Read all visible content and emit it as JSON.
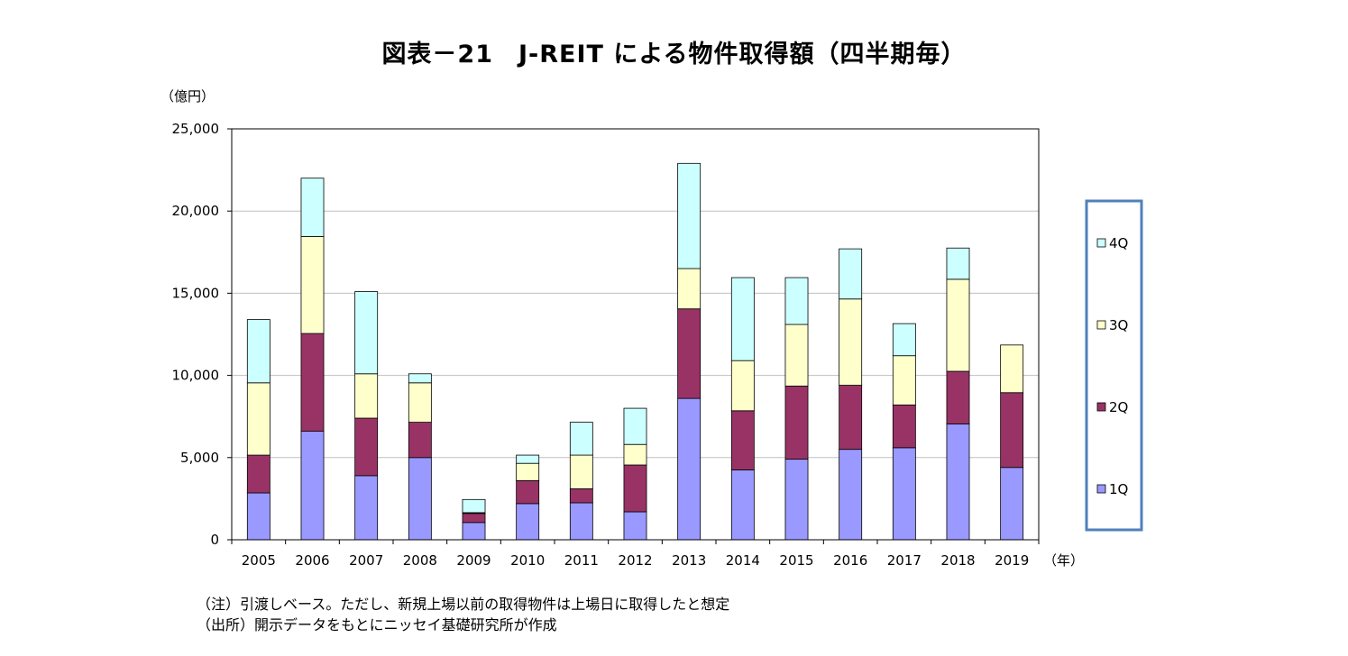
{
  "chart_data": {
    "type": "bar",
    "stacked": true,
    "title": "図表－21　J-REIT による物件取得額（四半期毎）",
    "ylabel": "（億円）",
    "xlabel": "（年）",
    "ylim": [
      0,
      25000
    ],
    "yticks": [
      "0",
      "5,000",
      "10,000",
      "15,000",
      "20,000",
      "25,000"
    ],
    "ytick_values": [
      0,
      5000,
      10000,
      15000,
      20000,
      25000
    ],
    "grid": true,
    "legend_position": "right",
    "categories": [
      "2005",
      "2006",
      "2007",
      "2008",
      "2009",
      "2010",
      "2011",
      "2012",
      "2013",
      "2014",
      "2015",
      "2016",
      "2017",
      "2018",
      "2019"
    ],
    "series": [
      {
        "name": "1Q",
        "color": "#9999ff",
        "values": [
          2850,
          6600,
          3900,
          5000,
          1050,
          2200,
          2250,
          1700,
          8600,
          4250,
          4900,
          5500,
          5600,
          7050,
          4400
        ]
      },
      {
        "name": "2Q",
        "color": "#993366",
        "values": [
          2300,
          5950,
          3500,
          2150,
          550,
          1400,
          850,
          2850,
          5450,
          3600,
          4450,
          3900,
          2600,
          3200,
          4550
        ]
      },
      {
        "name": "3Q",
        "color": "#ffffcc",
        "values": [
          4400,
          5900,
          2700,
          2400,
          50,
          1050,
          2050,
          1250,
          2450,
          3050,
          3750,
          5250,
          3000,
          5600,
          2900
        ]
      },
      {
        "name": "4Q",
        "color": "#ccffff",
        "values": [
          3850,
          3550,
          5000,
          550,
          800,
          500,
          2000,
          2200,
          6400,
          5050,
          2850,
          3050,
          1950,
          1900,
          0
        ]
      }
    ],
    "notes": [
      "（注）引渡しベース。ただし、新規上場以前の取得物件は上場日に取得したと想定",
      "（出所）開示データをもとにニッセイ基礎研究所が作成"
    ],
    "legend_border_color": "#4f81bd",
    "grid_color": "#bfbfbf"
  }
}
